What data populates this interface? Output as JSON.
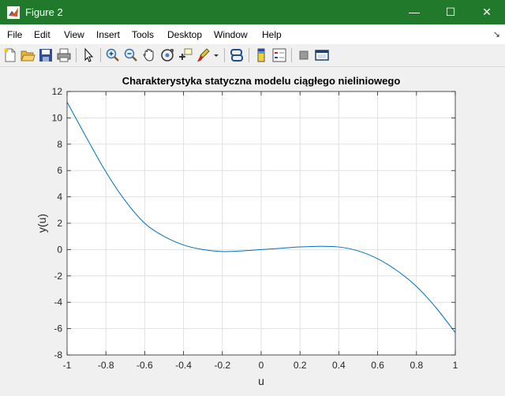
{
  "window": {
    "title": "Figure 2",
    "minimize_glyph": "—",
    "maximize_glyph": "☐",
    "close_glyph": "✕",
    "icon": "matlab-logo-icon"
  },
  "menubar": {
    "items": [
      "File",
      "Edit",
      "View",
      "Insert",
      "Tools",
      "Desktop",
      "Window",
      "Help"
    ],
    "dock_arrow": "↘"
  },
  "toolbar": {
    "buttons": [
      "new-figure-icon",
      "open-file-icon",
      "save-icon",
      "print-icon",
      "pointer-icon",
      "zoom-in-icon",
      "zoom-out-icon",
      "pan-icon",
      "rotate-3d-icon",
      "data-cursor-icon",
      "brush-icon",
      "link-plot-icon",
      "colorbar-icon",
      "legend-icon",
      "hide-plot-tools-icon",
      "show-plot-tools-icon"
    ]
  },
  "chart_data": {
    "type": "line",
    "title": "Charakterystyka statyczna modelu ciągłego nieliniowego",
    "xlabel": "u",
    "ylabel": "y(u)",
    "xlim": [
      -1,
      1
    ],
    "ylim": [
      -8,
      12
    ],
    "xticks": [
      -1,
      -0.8,
      -0.6,
      -0.4,
      -0.2,
      0,
      0.2,
      0.4,
      0.6,
      0.8,
      1
    ],
    "yticks": [
      -8,
      -6,
      -4,
      -2,
      0,
      2,
      4,
      6,
      8,
      10,
      12
    ],
    "grid": true,
    "series": [
      {
        "color": "#0072bd",
        "x": [
          -1,
          -0.9,
          -0.8,
          -0.7,
          -0.6,
          -0.5,
          -0.4,
          -0.3,
          -0.2,
          -0.1,
          0,
          0.1,
          0.2,
          0.3,
          0.4,
          0.5,
          0.6,
          0.7,
          0.8,
          0.9,
          1
        ],
        "y": [
          11.2,
          8.5,
          5.9,
          3.7,
          2.0,
          1.0,
          0.35,
          0.0,
          -0.15,
          -0.1,
          0.0,
          0.1,
          0.2,
          0.25,
          0.2,
          -0.1,
          -0.7,
          -1.6,
          -2.8,
          -4.4,
          -6.3
        ]
      }
    ]
  }
}
